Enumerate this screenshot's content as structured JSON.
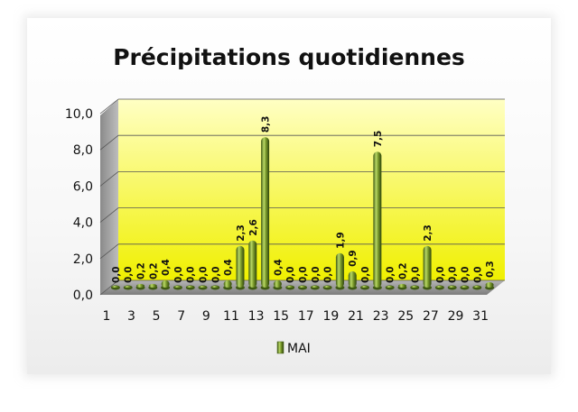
{
  "chart_data": {
    "type": "bar",
    "title": "Précipitations quotidiennes",
    "xlabel": "",
    "ylabel": "",
    "ylim": [
      0,
      10
    ],
    "yticks": [
      "0,0",
      "2,0",
      "4,0",
      "6,0",
      "8,0",
      "10,0"
    ],
    "categories": [
      "1",
      "2",
      "3",
      "4",
      "5",
      "6",
      "7",
      "8",
      "9",
      "10",
      "11",
      "12",
      "13",
      "14",
      "15",
      "16",
      "17",
      "18",
      "19",
      "20",
      "21",
      "22",
      "23",
      "24",
      "25",
      "26",
      "27",
      "28",
      "29",
      "30",
      "31"
    ],
    "xtick_labels_shown": [
      "1",
      "3",
      "5",
      "7",
      "9",
      "11",
      "13",
      "15",
      "17",
      "19",
      "21",
      "23",
      "25",
      "27",
      "29",
      "31"
    ],
    "series": [
      {
        "name": "MAI",
        "values": [
          0.0,
          0.0,
          0.2,
          0.2,
          0.4,
          0.0,
          0.0,
          0.0,
          0.0,
          0.4,
          2.3,
          2.6,
          8.3,
          0.4,
          0.0,
          0.0,
          0.0,
          0.0,
          1.9,
          0.9,
          0.0,
          7.5,
          0.0,
          0.2,
          0.0,
          2.3,
          0.0,
          0.0,
          0.0,
          0.0,
          0.3
        ],
        "labels": [
          "0,0",
          "0,0",
          "0,2",
          "0,2",
          "0,4",
          "0,0",
          "0,0",
          "0,0",
          "0,0",
          "0,4",
          "2,3",
          "2,6",
          "8,3",
          "0,4",
          "0,0",
          "0,0",
          "0,0",
          "0,0",
          "1,9",
          "0,9",
          "0,0",
          "7,5",
          "0,0",
          "0,2",
          "0,0",
          "2,3",
          "0,0",
          "0,0",
          "0,0",
          "0,0",
          "0,3"
        ]
      }
    ],
    "legend_position": "bottom",
    "grid": true,
    "colors": {
      "bar": "#7a9a2c",
      "bar_dark": "#3f5a12",
      "bar_light": "#c7e07a",
      "wall_top": "#ffffc0",
      "wall_bottom": "#f2f200",
      "floor": "#a8a8a8"
    }
  }
}
